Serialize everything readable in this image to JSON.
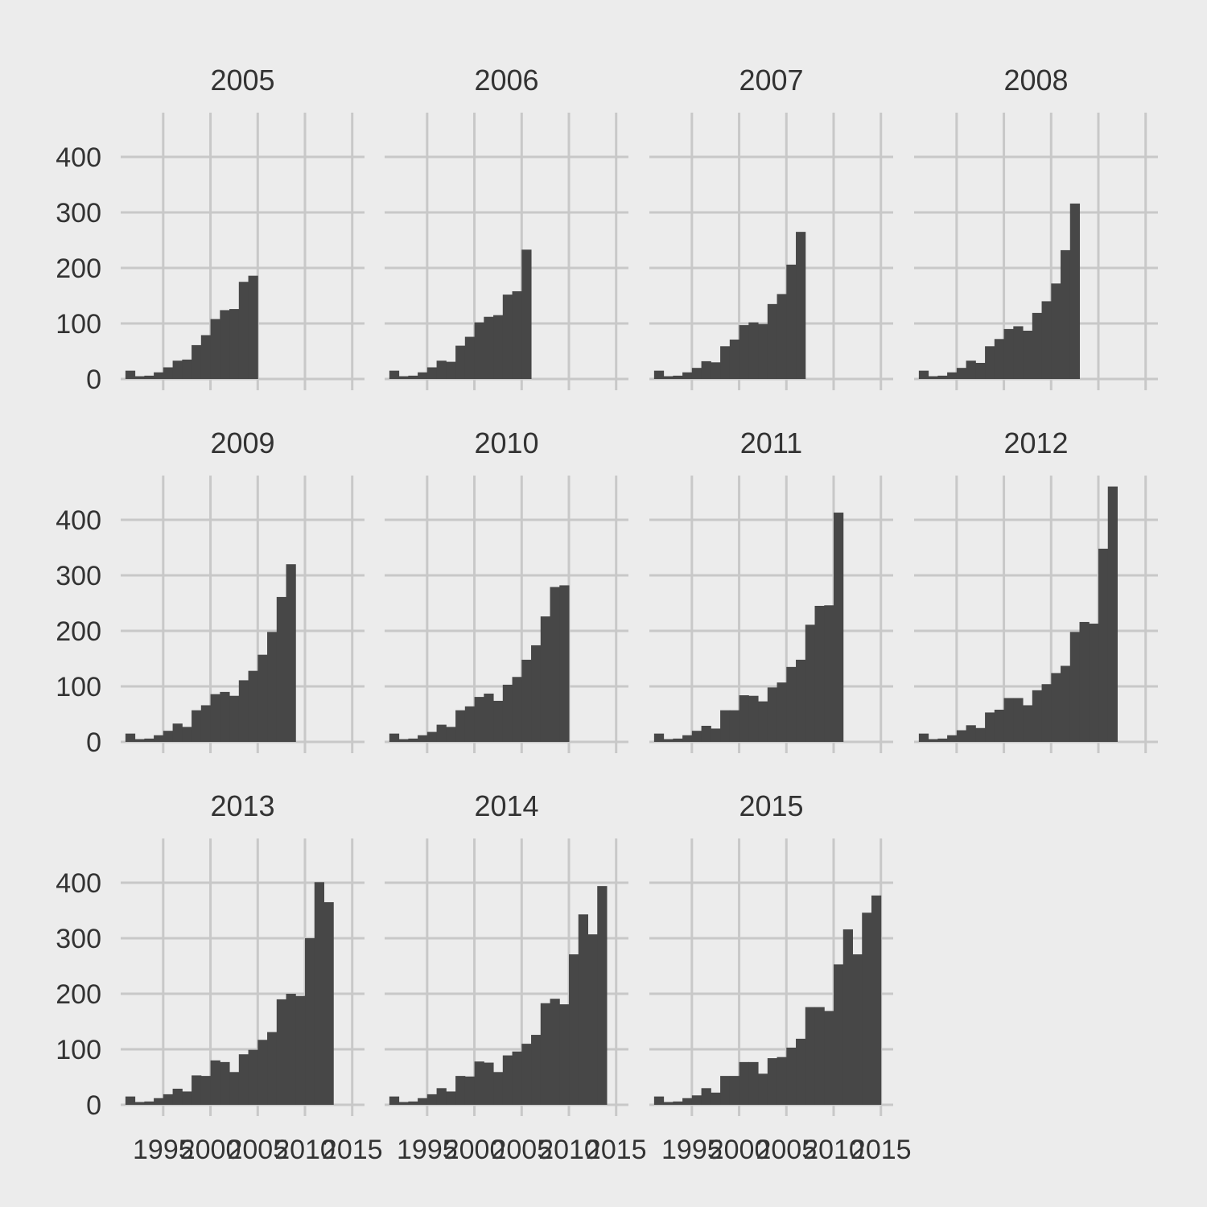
{
  "chart_data": {
    "type": "bar",
    "layout": "faceted histograms, 3 rows x 4 columns, shared axes",
    "x_axis_ticks": [
      "1995",
      "2000",
      "2005",
      "2010",
      "2015"
    ],
    "y_axis_ticks": [
      "0",
      "100",
      "200",
      "300",
      "400"
    ],
    "xlim": [
      1990.5,
      2016.3
    ],
    "ylim": [
      0,
      480
    ],
    "bin_width": 1,
    "first_bin_center": 1991.5,
    "grid": true,
    "bar_color": "#474747",
    "grid_color": "#c8c8c8",
    "background_color": "#ececec",
    "panels": [
      {
        "title": "2005",
        "values": [
          15,
          5,
          6,
          12,
          21,
          33,
          35,
          61,
          79,
          108,
          124,
          126,
          175,
          186
        ]
      },
      {
        "title": "2006",
        "values": [
          15,
          5,
          6,
          12,
          21,
          33,
          31,
          60,
          76,
          102,
          112,
          115,
          152,
          158,
          233
        ]
      },
      {
        "title": "2007",
        "values": [
          15,
          5,
          6,
          12,
          20,
          32,
          30,
          59,
          71,
          97,
          102,
          99,
          135,
          153,
          206,
          265
        ]
      },
      {
        "title": "2008",
        "values": [
          15,
          5,
          6,
          12,
          20,
          33,
          29,
          59,
          72,
          90,
          95,
          87,
          119,
          140,
          172,
          232,
          316
        ]
      },
      {
        "title": "2009",
        "values": [
          15,
          5,
          6,
          12,
          20,
          33,
          27,
          57,
          66,
          86,
          90,
          83,
          111,
          128,
          157,
          198,
          261,
          320
        ]
      },
      {
        "title": "2010",
        "values": [
          15,
          5,
          6,
          12,
          18,
          31,
          27,
          57,
          64,
          81,
          87,
          74,
          103,
          117,
          148,
          174,
          226,
          279,
          282
        ]
      },
      {
        "title": "2011",
        "values": [
          15,
          5,
          6,
          12,
          20,
          29,
          24,
          57,
          57,
          84,
          83,
          73,
          98,
          107,
          135,
          148,
          211,
          245,
          246,
          413
        ]
      },
      {
        "title": "2012",
        "values": [
          15,
          5,
          6,
          12,
          21,
          30,
          25,
          53,
          58,
          79,
          79,
          66,
          93,
          104,
          124,
          137,
          198,
          216,
          213,
          348,
          460
        ]
      },
      {
        "title": "2013",
        "values": [
          15,
          5,
          6,
          12,
          19,
          29,
          24,
          53,
          52,
          80,
          77,
          59,
          91,
          99,
          117,
          131,
          190,
          200,
          196,
          300,
          401,
          365
        ]
      },
      {
        "title": "2014",
        "values": [
          15,
          5,
          6,
          12,
          19,
          30,
          24,
          52,
          51,
          78,
          76,
          59,
          89,
          96,
          110,
          126,
          183,
          191,
          181,
          271,
          343,
          307,
          394
        ]
      },
      {
        "title": "2015",
        "values": [
          15,
          5,
          6,
          12,
          17,
          30,
          22,
          52,
          52,
          77,
          77,
          56,
          84,
          86,
          103,
          119,
          176,
          176,
          169,
          253,
          316,
          271,
          346,
          377
        ]
      }
    ]
  }
}
